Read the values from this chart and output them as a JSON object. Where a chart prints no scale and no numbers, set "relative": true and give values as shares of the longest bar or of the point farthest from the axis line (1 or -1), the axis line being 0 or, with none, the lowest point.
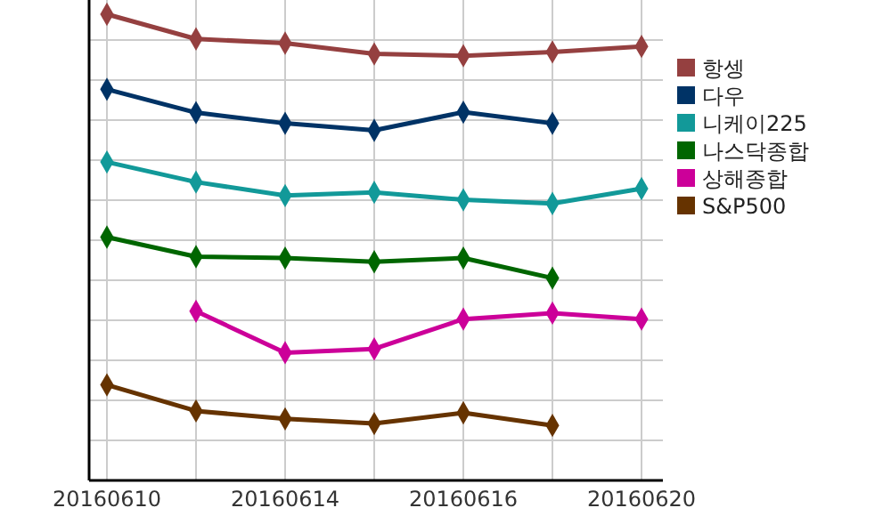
{
  "chart_data": {
    "type": "line",
    "relative": true,
    "categories": [
      "20160610",
      null,
      "20160614",
      null,
      "20160616",
      null,
      "20160620"
    ],
    "grid": true,
    "legend": "right",
    "marker": "diamond",
    "series": [
      {
        "name": "항셍",
        "color": "#954040",
        "values": [
          1,
          0.947,
          0.938,
          0.915,
          0.911,
          0.919,
          0.931
        ]
      },
      {
        "name": "다우",
        "color": "#003366",
        "values": [
          0.839,
          0.789,
          0.766,
          0.751,
          0.79,
          0.766,
          null
        ]
      },
      {
        "name": "니케이225",
        "color": "#129999",
        "values": [
          0.683,
          0.64,
          0.611,
          0.618,
          0.602,
          0.594,
          0.626
        ]
      },
      {
        "name": "나스닥종합",
        "color": "#006600",
        "values": [
          0.522,
          0.48,
          0.477,
          0.469,
          0.477,
          0.434,
          null
        ]
      },
      {
        "name": "상해종합",
        "color": "#cc0099",
        "values": [
          null,
          0.363,
          0.274,
          0.282,
          0.346,
          0.359,
          0.346
        ]
      },
      {
        "name": "S&P500",
        "color": "#663300",
        "values": [
          0.205,
          0.149,
          0.132,
          0.122,
          0.145,
          0.118,
          null
        ]
      }
    ]
  }
}
